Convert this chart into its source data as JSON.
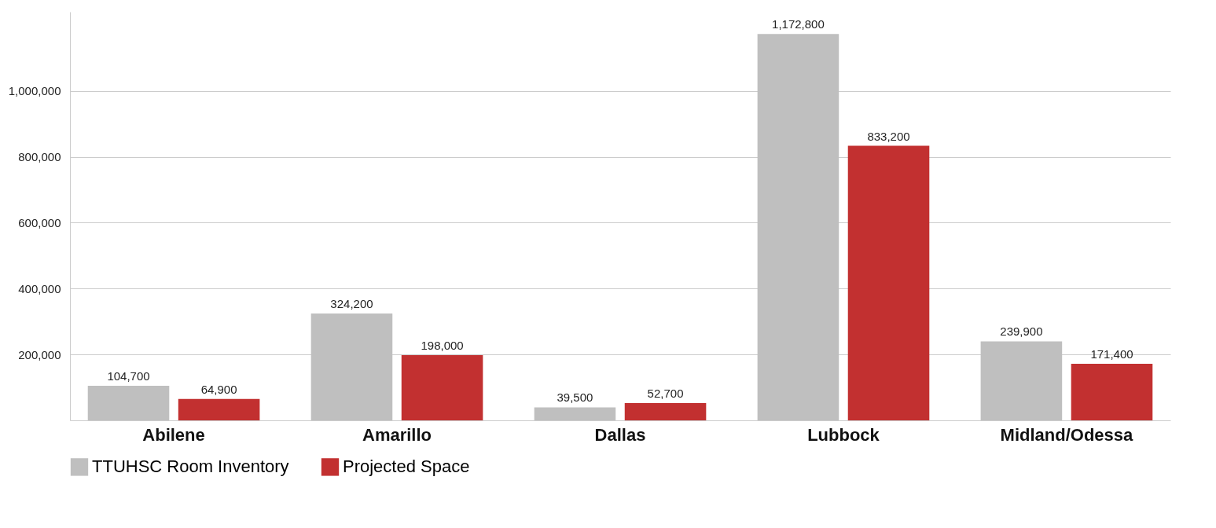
{
  "chart_data": {
    "type": "bar",
    "categories": [
      "Abilene",
      "Amarillo",
      "Dallas",
      "Lubbock",
      "Midland/Odessa"
    ],
    "series": [
      {
        "name": "TTUHSC Room Inventory",
        "color": "#bfbfbf",
        "values": [
          104700,
          324200,
          39500,
          1172800,
          239900
        ],
        "value_labels": [
          "104,700",
          "324,200",
          "39,500",
          "1,172,800",
          "239,900"
        ]
      },
      {
        "name": "Projected Space",
        "color": "#c23030",
        "values": [
          64900,
          198000,
          52700,
          833200,
          171400
        ],
        "value_labels": [
          "64,900",
          "198,000",
          "52,700",
          "833,200",
          "171,400"
        ]
      }
    ],
    "ylim": [
      0,
      1240000
    ],
    "yticks": [
      {
        "value": 200000,
        "label": "200,000"
      },
      {
        "value": 400000,
        "label": "400,000"
      },
      {
        "value": 600000,
        "label": "600,000"
      },
      {
        "value": 800000,
        "label": "800,000"
      },
      {
        "value": 1000000,
        "label": "1,000,000"
      }
    ],
    "grid": "y",
    "legend": "bottom left"
  }
}
